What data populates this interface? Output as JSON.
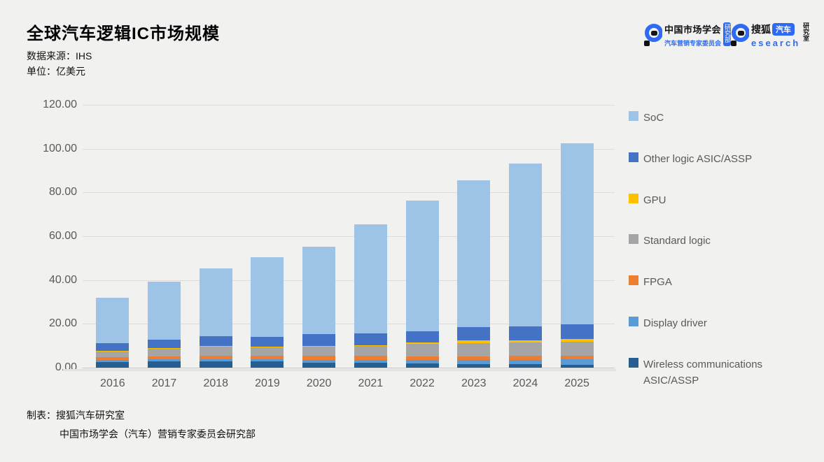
{
  "header": {
    "title": "全球汽车逻辑IC市场规模",
    "source": "数据来源：IHS",
    "unit": "单位：亿美元"
  },
  "logos": {
    "cma": {
      "org": "中国市场学会",
      "sub": "汽车营销专家委员会",
      "badge": "研究部"
    },
    "sohu": {
      "brand": "搜狐",
      "badge": "汽车",
      "word": "esearch",
      "side": "研究室"
    }
  },
  "chart_data": {
    "type": "bar",
    "stacked": true,
    "title": "全球汽车逻辑IC市场规模",
    "unit": "亿美元",
    "source": "IHS",
    "categories": [
      "2016",
      "2017",
      "2018",
      "2019",
      "2020",
      "2021",
      "2022",
      "2023",
      "2024",
      "2025"
    ],
    "series_bottom_to_top": [
      {
        "name": "Wireless communications ASIC/ASSP",
        "color": "#255E91",
        "values": [
          2.6,
          2.8,
          2.9,
          2.9,
          2.1,
          2.1,
          1.8,
          1.6,
          1.6,
          1.4
        ]
      },
      {
        "name": "Display driver",
        "color": "#5B9BD5",
        "values": [
          0.9,
          0.9,
          1.0,
          1.0,
          1.3,
          1.3,
          1.6,
          1.9,
          2.0,
          2.3
        ]
      },
      {
        "name": "FPGA",
        "color": "#ED7D31",
        "values": [
          1.2,
          1.5,
          1.6,
          1.6,
          1.9,
          1.9,
          1.6,
          1.6,
          1.7,
          1.7
        ]
      },
      {
        "name": "Standard logic",
        "color": "#A5A5A5",
        "values": [
          3.0,
          3.4,
          4.2,
          3.9,
          4.6,
          4.8,
          5.9,
          6.2,
          6.2,
          6.4
        ]
      },
      {
        "name": "GPU",
        "color": "#FFC000",
        "values": [
          0.1,
          0.4,
          0.1,
          0.1,
          0.1,
          0.2,
          0.6,
          1.1,
          1.1,
          1.4
        ]
      },
      {
        "name": "Other logic ASIC/ASSP",
        "color": "#4472C4",
        "values": [
          3.5,
          3.9,
          4.6,
          4.6,
          5.2,
          5.4,
          5.0,
          6.1,
          6.2,
          6.6
        ]
      },
      {
        "name": "SoC",
        "color": "#9DC3E6",
        "values": [
          20.6,
          26.3,
          30.9,
          36.2,
          40.0,
          49.6,
          59.7,
          67.2,
          74.4,
          82.5
        ]
      }
    ],
    "totals": [
      31.9,
      39.2,
      45.3,
      50.3,
      55.2,
      65.3,
      76.2,
      85.7,
      93.2,
      102.3
    ],
    "legend": [
      {
        "label": "SoC",
        "color": "#9DC3E6"
      },
      {
        "label": "Other logic ASIC/ASSP",
        "color": "#4472C4"
      },
      {
        "label": "GPU",
        "color": "#FFC000"
      },
      {
        "label": "Standard logic",
        "color": "#A5A5A5"
      },
      {
        "label": "FPGA",
        "color": "#ED7D31"
      },
      {
        "label": "Display driver",
        "color": "#5B9BD5"
      },
      {
        "label": "Wireless communications ASIC/ASSP",
        "color": "#255E91"
      }
    ],
    "legend_position": "right",
    "grid": true,
    "ylim": [
      0,
      120
    ],
    "ytick_step": 20,
    "ytick_labels": [
      "0.00",
      "20.00",
      "40.00",
      "60.00",
      "80.00",
      "100.00",
      "120.00"
    ]
  },
  "footer": {
    "line1": "制表：搜狐汽车研究室",
    "line2": "中国市场学会（汽车）营销专家委员会研究部"
  },
  "colors": {
    "background": "#F1F1F0",
    "gridline": "#DCDCDC",
    "axis_text": "#595959",
    "legend_text": "#595959",
    "logo_blue": "#2E6BF2"
  }
}
